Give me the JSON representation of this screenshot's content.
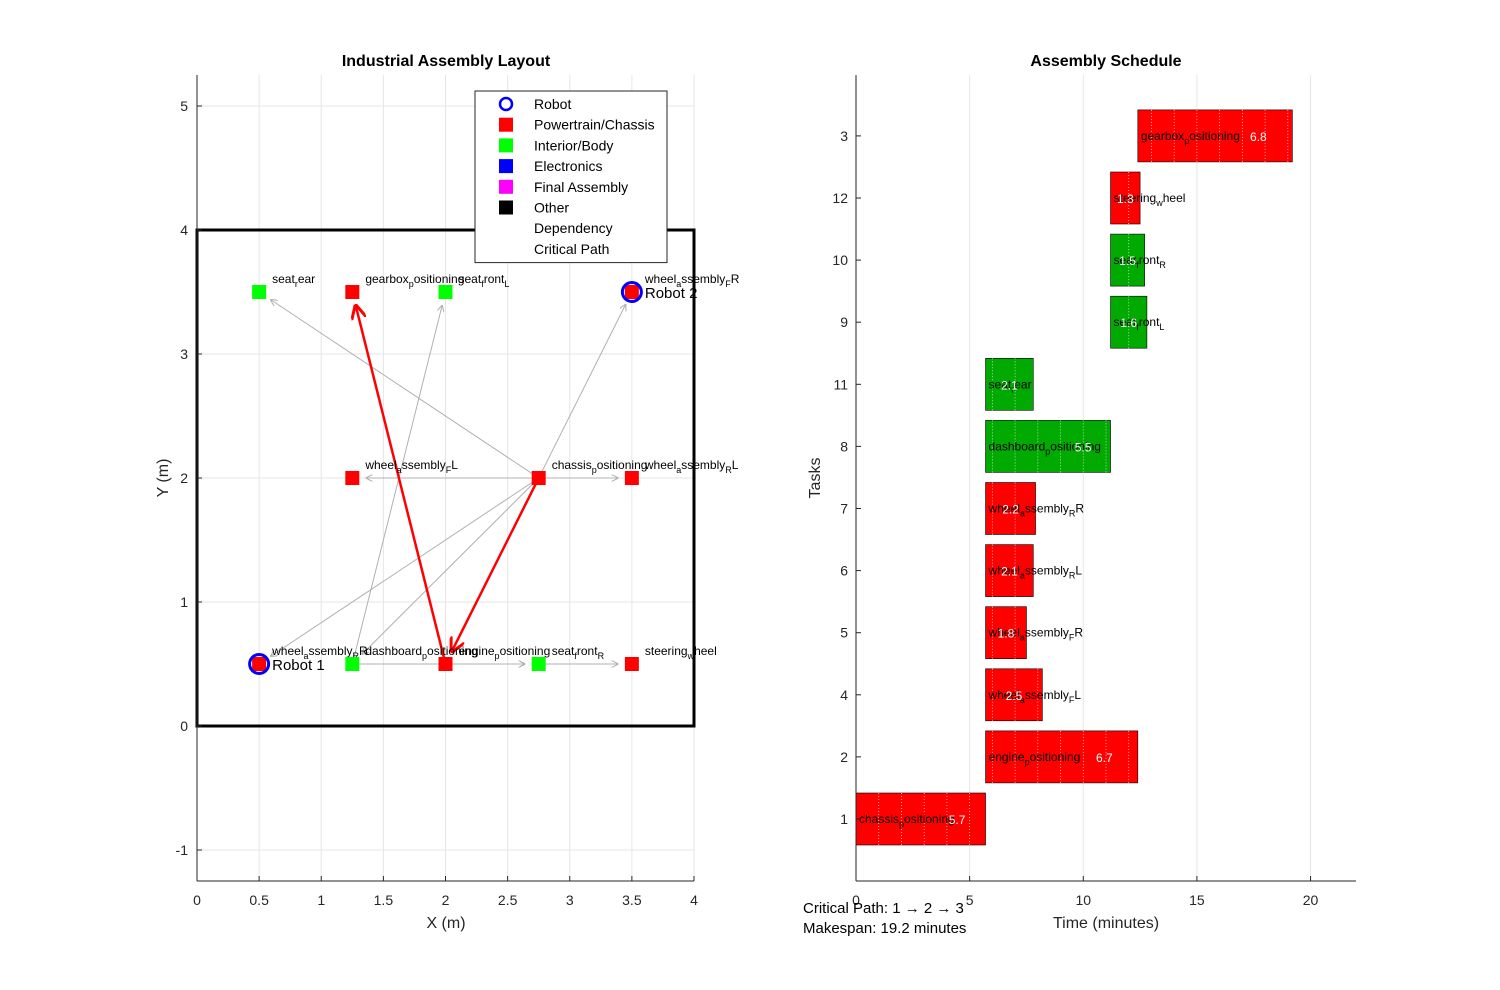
{
  "chart_data": [
    {
      "type": "scatter",
      "title": "Industrial Assembly Layout",
      "xlabel": "X (m)",
      "ylabel": "Y (m)",
      "xlim": [
        0,
        4
      ],
      "ylim": [
        -1.25,
        5.25
      ],
      "xticks": [
        "0",
        "0.5",
        "1",
        "1.5",
        "2",
        "2.5",
        "3",
        "3.5",
        "4"
      ],
      "xtick_values": [
        0,
        0.5,
        1,
        1.5,
        2,
        2.5,
        3,
        3.5,
        4
      ],
      "yticks": [
        "-1",
        "0",
        "1",
        "2",
        "3",
        "4",
        "5"
      ],
      "ytick_values": [
        -1,
        0,
        1,
        2,
        3,
        4,
        5
      ],
      "grid": true,
      "workcell": {
        "x": [
          0,
          4
        ],
        "y": [
          0,
          4
        ]
      },
      "legend": {
        "placement": "top-right",
        "entries": [
          {
            "label": "Robot",
            "marker": "circle",
            "color": "#0000ff"
          },
          {
            "label": "Powertrain/Chassis",
            "marker": "square",
            "color": "#ff0000"
          },
          {
            "label": "Interior/Body",
            "marker": "square",
            "color": "#00ff00"
          },
          {
            "label": "Electronics",
            "marker": "square",
            "color": "#0000ff"
          },
          {
            "label": "Final Assembly",
            "marker": "square",
            "color": "#ff00ff"
          },
          {
            "label": "Other",
            "marker": "square",
            "color": "#000000"
          },
          {
            "label": "Dependency",
            "marker": "none",
            "color": "#ffffff"
          },
          {
            "label": "Critical Path",
            "marker": "none",
            "color": "#ffffff"
          }
        ]
      },
      "robots": [
        {
          "label": "Robot 1",
          "x": 0.5,
          "y": 0.5
        },
        {
          "label": "Robot 2",
          "x": 3.5,
          "y": 3.5
        }
      ],
      "stations": [
        {
          "label": "seat_rear",
          "x": 0.5,
          "y": 3.5,
          "category": "Interior/Body"
        },
        {
          "label": "gearbox_positioning",
          "x": 1.25,
          "y": 3.5,
          "category": "Powertrain/Chassis"
        },
        {
          "label": "seat_front_L",
          "x": 2.0,
          "y": 3.5,
          "category": "Interior/Body"
        },
        {
          "label": "wheel_assembly_FR",
          "x": 3.5,
          "y": 3.5,
          "category": "Powertrain/Chassis"
        },
        {
          "label": "wheel_assembly_FL",
          "x": 1.25,
          "y": 2.0,
          "category": "Powertrain/Chassis"
        },
        {
          "label": "chassis_positioning",
          "x": 2.75,
          "y": 2.0,
          "category": "Powertrain/Chassis"
        },
        {
          "label": "wheel_assembly_RL",
          "x": 3.5,
          "y": 2.0,
          "category": "Powertrain/Chassis"
        },
        {
          "label": "wheel_assembly_RR",
          "x": 0.5,
          "y": 0.5,
          "category": "Powertrain/Chassis"
        },
        {
          "label": "dashboard_positioning",
          "x": 1.25,
          "y": 0.5,
          "category": "Interior/Body"
        },
        {
          "label": "engine_positioning",
          "x": 2.0,
          "y": 0.5,
          "category": "Powertrain/Chassis"
        },
        {
          "label": "seat_front_R",
          "x": 2.75,
          "y": 0.5,
          "category": "Interior/Body"
        },
        {
          "label": "steering_wheel",
          "x": 3.5,
          "y": 0.5,
          "category": "Powertrain/Chassis"
        }
      ],
      "dependencies": [
        {
          "from": [
            2.75,
            2.0
          ],
          "to": [
            0.5,
            3.5
          ]
        },
        {
          "from": [
            2.75,
            2.0
          ],
          "to": [
            1.25,
            2.0
          ]
        },
        {
          "from": [
            2.75,
            2.0
          ],
          "to": [
            3.5,
            2.0
          ]
        },
        {
          "from": [
            2.75,
            2.0
          ],
          "to": [
            3.5,
            3.5
          ]
        },
        {
          "from": [
            2.75,
            2.0
          ],
          "to": [
            0.5,
            0.5
          ]
        },
        {
          "from": [
            2.75,
            2.0
          ],
          "to": [
            1.25,
            0.5
          ]
        },
        {
          "from": [
            1.25,
            0.5
          ],
          "to": [
            2.0,
            3.5
          ]
        },
        {
          "from": [
            1.25,
            0.5
          ],
          "to": [
            2.75,
            0.5
          ]
        },
        {
          "from": [
            2.0,
            0.5
          ],
          "to": [
            2.75,
            0.5
          ]
        },
        {
          "from": [
            2.75,
            0.5
          ],
          "to": [
            3.5,
            0.5
          ]
        }
      ],
      "critical_path": [
        {
          "from": [
            2.75,
            2.0
          ],
          "to": [
            2.0,
            0.5
          ]
        },
        {
          "from": [
            2.0,
            0.5
          ],
          "to": [
            1.25,
            3.5
          ]
        }
      ],
      "colors": {
        "powertrain": "#ff0000",
        "interior": "#00ff00",
        "robot": "#0000ff",
        "dependency": "#b0b0b0",
        "critical": "#ff0000"
      }
    },
    {
      "type": "bar",
      "orientation": "horizontal",
      "title": "Assembly Schedule",
      "xlabel": "Time (minutes)",
      "ylabel": "Tasks",
      "xlim": [
        0,
        22
      ],
      "xticks": [
        "0",
        "5",
        "10",
        "15",
        "20"
      ],
      "xtick_values": [
        0,
        5,
        10,
        15,
        20
      ],
      "categories": [
        "1",
        "2",
        "4",
        "5",
        "6",
        "7",
        "8",
        "11",
        "9",
        "10",
        "12",
        "3"
      ],
      "tasks": [
        {
          "id": "1",
          "label": "chassis_positioning",
          "start": 0,
          "duration": 5.7,
          "duration_label": "5.7",
          "color": "#ff0000"
        },
        {
          "id": "2",
          "label": "engine_positioning",
          "start": 5.7,
          "duration": 6.7,
          "duration_label": "6.7",
          "color": "#ff0000"
        },
        {
          "id": "4",
          "label": "wheel_assembly_FL",
          "start": 5.7,
          "duration": 2.5,
          "duration_label": "2.5",
          "color": "#ff0000"
        },
        {
          "id": "5",
          "label": "wheel_assembly_FR",
          "start": 5.7,
          "duration": 1.8,
          "duration_label": "1.8",
          "color": "#ff0000"
        },
        {
          "id": "6",
          "label": "wheel_assembly_RL",
          "start": 5.7,
          "duration": 2.1,
          "duration_label": "2.1",
          "color": "#ff0000"
        },
        {
          "id": "7",
          "label": "wheel_assembly_RR",
          "start": 5.7,
          "duration": 2.2,
          "duration_label": "2.2",
          "color": "#ff0000"
        },
        {
          "id": "8",
          "label": "dashboard_positioning",
          "start": 5.7,
          "duration": 5.5,
          "duration_label": "5.5",
          "color": "#00aa00"
        },
        {
          "id": "11",
          "label": "seat_rear",
          "start": 5.7,
          "duration": 2.1,
          "duration_label": "2.1",
          "color": "#00aa00"
        },
        {
          "id": "9",
          "label": "seat_front_L",
          "start": 11.2,
          "duration": 1.6,
          "duration_label": "1.6",
          "color": "#00aa00"
        },
        {
          "id": "10",
          "label": "seat_front_R",
          "start": 11.2,
          "duration": 1.5,
          "duration_label": "1.5",
          "color": "#00aa00"
        },
        {
          "id": "12",
          "label": "steering_wheel",
          "start": 11.2,
          "duration": 1.3,
          "duration_label": "1.3",
          "color": "#ff0000"
        },
        {
          "id": "3",
          "label": "gearbox_positioning",
          "start": 12.4,
          "duration": 6.8,
          "duration_label": "6.8",
          "color": "#ff0000"
        }
      ]
    }
  ],
  "annotations": {
    "critical_path": "Critical Path: 1 → 2 → 3",
    "makespan": "Makespan: 19.2 minutes"
  }
}
